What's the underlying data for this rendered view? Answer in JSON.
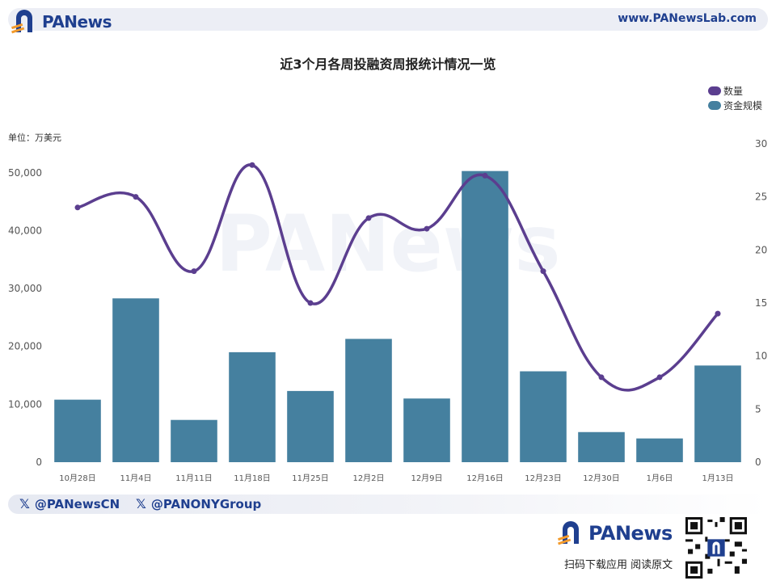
{
  "header": {
    "brand": "PANews",
    "site": "www.PANewsLab.com"
  },
  "chart_data": {
    "type": "bar",
    "title": "近3个月各周投融资周报统计情况一览",
    "unit_label": "单位：万美元",
    "categories": [
      "10月28日",
      "11月4日",
      "11月11日",
      "11月18日",
      "11月25日",
      "12月2日",
      "12月9日",
      "12月16日",
      "12月23日",
      "12月30日",
      "1月6日",
      "1月13日"
    ],
    "series": [
      {
        "name": "数量",
        "type": "line",
        "axis": "right",
        "color": "#5b3e8f",
        "values": [
          24,
          25,
          18,
          28,
          15,
          23,
          22,
          27,
          18,
          8,
          8,
          14
        ]
      },
      {
        "name": "资金规模",
        "type": "bar",
        "axis": "left",
        "color": "#45809f",
        "values": [
          10800,
          28300,
          7300,
          19000,
          12300,
          21300,
          11000,
          50300,
          15700,
          5200,
          4100,
          16700
        ]
      }
    ],
    "left_axis": {
      "ylim": [
        0,
        55000
      ],
      "ticks": [
        0,
        10000,
        20000,
        30000,
        40000,
        50000
      ],
      "tick_labels": [
        "0",
        "10,000",
        "20,000",
        "30,000",
        "40,000",
        "50,000"
      ]
    },
    "right_axis": {
      "ylim": [
        0,
        30
      ],
      "ticks": [
        0,
        5,
        10,
        15,
        20,
        25,
        30
      ],
      "tick_labels": [
        "0",
        "5",
        "10",
        "15",
        "20",
        "25",
        "30"
      ]
    },
    "legend": "top-right",
    "grid": false
  },
  "footer": {
    "social1": "@PANewsCN",
    "social2": "@PANONYGroup",
    "brand": "PANews",
    "qr_caption": "扫码下载应用  阅读原文"
  },
  "colors": {
    "brand": "#1f3f8f",
    "bar": "#45809f",
    "line": "#5b3e8f",
    "accent_orange": "#f39a2a"
  },
  "icons": {
    "logo": "panews-logo-icon",
    "x": "x-twitter-icon",
    "qr": "qr-code-icon"
  }
}
